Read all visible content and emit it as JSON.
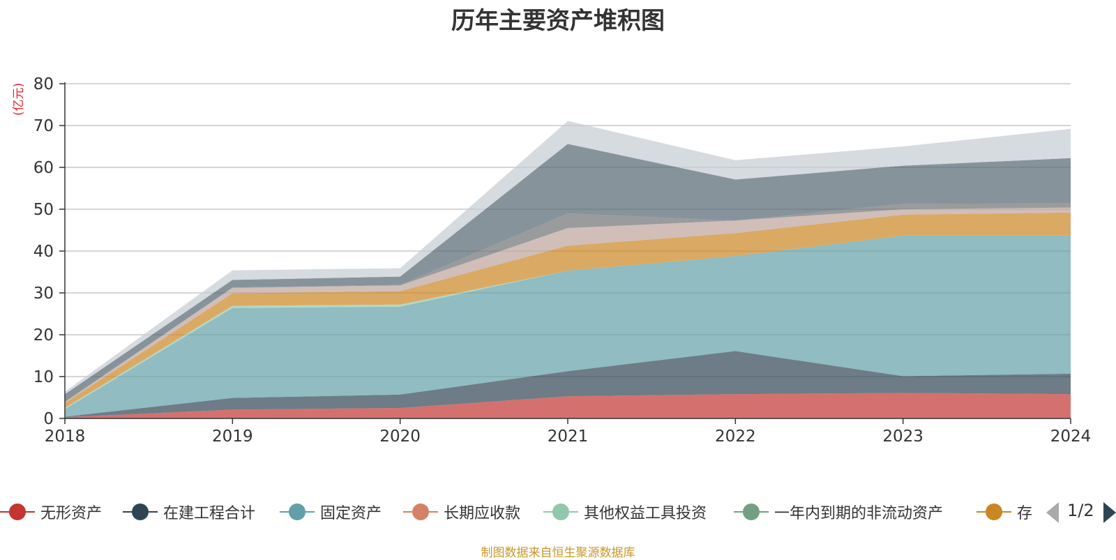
{
  "title": "历年主要资产堆积图",
  "unit_label": "(亿元)",
  "source_text": "制图数据来自恒生聚源数据库",
  "legend_page": "1/2",
  "legend_items": [
    {
      "name": "无形资产",
      "color": "#c23531"
    },
    {
      "name": "在建工程合计",
      "color": "#2f4554"
    },
    {
      "name": "固定资产",
      "color": "#61a0a8"
    },
    {
      "name": "长期应收款",
      "color": "#d48265"
    },
    {
      "name": "其他权益工具投资",
      "color": "#91c7ae"
    },
    {
      "name": "一年内到期的非流动资产",
      "color": "#749f83"
    },
    {
      "name": "存",
      "color": "#ca8622"
    }
  ],
  "chart_data": {
    "type": "area",
    "stacked": true,
    "title": "历年主要资产堆积图",
    "ylabel": "(亿元)",
    "x": [
      "2018",
      "2019",
      "2020",
      "2021",
      "2022",
      "2023",
      "2024"
    ],
    "ylim": [
      0,
      80
    ],
    "yticks": [
      0,
      10,
      20,
      30,
      40,
      50,
      60,
      70,
      80
    ],
    "grid": true,
    "legend_position": "bottom",
    "series": [
      {
        "name": "无形资产",
        "color": "#c23531",
        "values": [
          0.3,
          2.1,
          2.5,
          5.3,
          5.8,
          6.1,
          5.8
        ]
      },
      {
        "name": "在建工程合计",
        "color": "#2f4554",
        "values": [
          0.1,
          2.8,
          3.2,
          6.0,
          10.3,
          4.0,
          4.9
        ]
      },
      {
        "name": "固定资产",
        "color": "#61a0a8",
        "values": [
          1.8,
          21.5,
          21.0,
          24.0,
          22.7,
          33.6,
          33.0
        ]
      },
      {
        "name": "长期应收款",
        "color": "#d48265",
        "values": [
          0.0,
          0.0,
          0.0,
          0.0,
          0.0,
          0.0,
          0.0
        ]
      },
      {
        "name": "其他权益工具投资",
        "color": "#91c7ae",
        "values": [
          0.3,
          0.5,
          0.5,
          0.0,
          0.0,
          0.0,
          0.0
        ]
      },
      {
        "name": "一年内到期的非流动资产",
        "color": "#749f83",
        "values": [
          0.0,
          0.0,
          0.0,
          0.0,
          0.0,
          0.0,
          0.0
        ]
      },
      {
        "name": "存",
        "color": "#ca8622",
        "values": [
          1.2,
          3.0,
          3.2,
          6.0,
          5.5,
          5.0,
          5.5
        ]
      },
      {
        "name": "",
        "color": "#bda29a",
        "values": [
          0.2,
          1.3,
          1.4,
          4.2,
          3.0,
          1.3,
          1.2
        ]
      },
      {
        "name": "",
        "color": "#6e7074",
        "values": [
          0.1,
          0.1,
          0.1,
          3.5,
          0.0,
          1.3,
          1.0
        ]
      },
      {
        "name": "",
        "color": "#546570",
        "values": [
          1.8,
          1.8,
          2.0,
          16.6,
          9.8,
          9.1,
          10.8
        ]
      },
      {
        "name": "",
        "color": "#c4ccd3",
        "values": [
          0.6,
          2.3,
          2.0,
          5.5,
          4.6,
          4.6,
          7.0
        ]
      }
    ]
  }
}
